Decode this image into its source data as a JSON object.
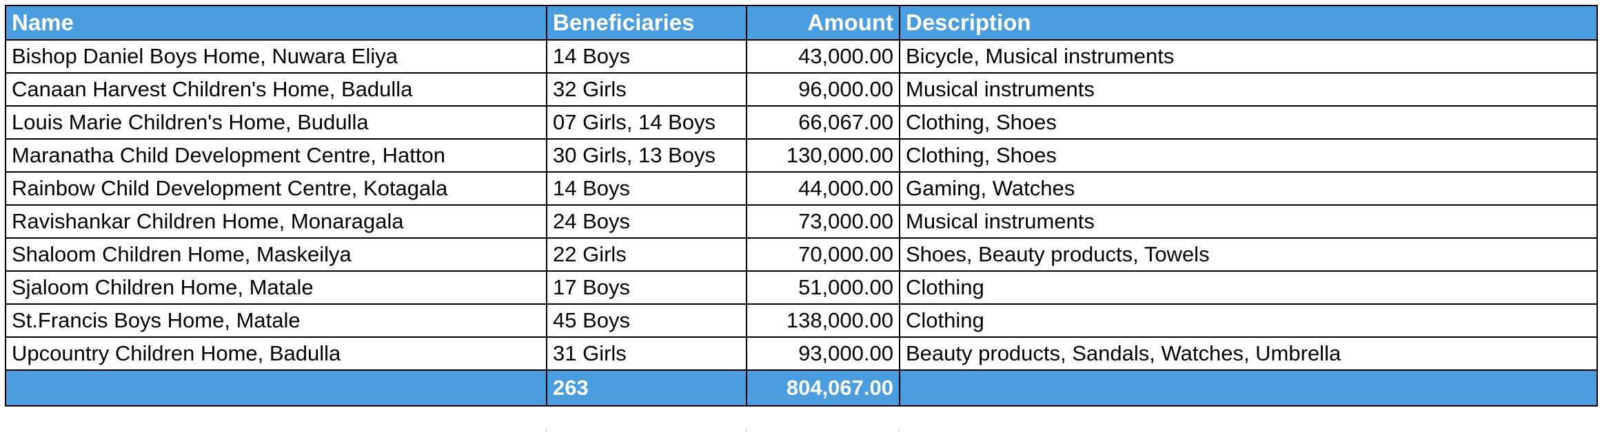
{
  "colors": {
    "header_bg": "#4a9ee0",
    "header_text": "#ffffff",
    "grid": "#000000"
  },
  "table": {
    "headers": {
      "name": "Name",
      "beneficiaries": "Beneficiaries",
      "amount": "Amount",
      "description": "Description"
    },
    "rows": [
      {
        "name": "Bishop Daniel Boys Home, Nuwara Eliya",
        "beneficiaries": "14 Boys",
        "amount": "43,000.00",
        "description": "Bicycle, Musical instruments"
      },
      {
        "name": "Canaan Harvest Children's Home, Badulla",
        "beneficiaries": "32 Girls",
        "amount": "96,000.00",
        "description": "Musical instruments"
      },
      {
        "name": "Louis Marie Children's Home, Budulla",
        "beneficiaries": "07 Girls, 14 Boys",
        "amount": "66,067.00",
        "description": "Clothing, Shoes"
      },
      {
        "name": "Maranatha Child Development Centre, Hatton",
        "beneficiaries": "30 Girls, 13 Boys",
        "amount": "130,000.00",
        "description": "Clothing, Shoes"
      },
      {
        "name": "Rainbow Child Development Centre, Kotagala",
        "beneficiaries": "14 Boys",
        "amount": "44,000.00",
        "description": "Gaming, Watches"
      },
      {
        "name": "Ravishankar Children Home, Monaragala",
        "beneficiaries": "24 Boys",
        "amount": "73,000.00",
        "description": "Musical instruments"
      },
      {
        "name": "Shaloom Children Home, Maskeilya",
        "beneficiaries": "22 Girls",
        "amount": "70,000.00",
        "description": "Shoes, Beauty products, Towels"
      },
      {
        "name": "Sjaloom Children Home, Matale",
        "beneficiaries": "17 Boys",
        "amount": "51,000.00",
        "description": "Clothing"
      },
      {
        "name": "St.Francis Boys Home, Matale",
        "beneficiaries": "45 Boys",
        "amount": "138,000.00",
        "description": "Clothing"
      },
      {
        "name": "Upcountry Children Home, Badulla",
        "beneficiaries": "31 Girls",
        "amount": "93,000.00",
        "description": "Beauty products, Sandals, Watches, Umbrella"
      }
    ],
    "totals": {
      "name": "",
      "beneficiaries": "263",
      "amount": "804,067.00",
      "description": ""
    }
  }
}
